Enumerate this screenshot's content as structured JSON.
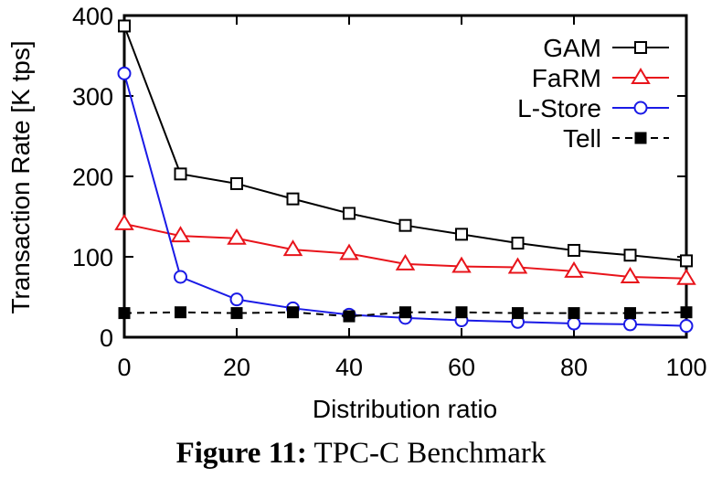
{
  "chart_data": {
    "type": "line",
    "xlabel": "Distribution ratio",
    "ylabel": "Transaction Rate [K tps]",
    "xlim": [
      0,
      100
    ],
    "ylim": [
      0,
      400
    ],
    "xticks": [
      0,
      20,
      40,
      60,
      80,
      100
    ],
    "yticks": [
      0,
      100,
      200,
      300,
      400
    ],
    "grid": false,
    "legend_position": "top-right",
    "series": [
      {
        "name": "GAM",
        "color": "#000000",
        "marker": "open-square",
        "dash": "solid",
        "x": [
          0,
          10,
          20,
          30,
          40,
          50,
          60,
          70,
          80,
          90,
          100
        ],
        "values": [
          387,
          203,
          191,
          172,
          154,
          139,
          128,
          117,
          108,
          102,
          95
        ]
      },
      {
        "name": "FaRM",
        "color": "#e8141b",
        "marker": "open-triangle",
        "dash": "solid",
        "x": [
          0,
          10,
          20,
          30,
          40,
          50,
          60,
          70,
          80,
          90,
          100
        ],
        "values": [
          141,
          126,
          123,
          109,
          104,
          91,
          88,
          87,
          82,
          75,
          73
        ]
      },
      {
        "name": "L-Store",
        "color": "#1a1ae6",
        "marker": "open-circle",
        "dash": "solid",
        "x": [
          0,
          10,
          20,
          30,
          40,
          50,
          60,
          70,
          80,
          90,
          100
        ],
        "values": [
          328,
          75,
          47,
          36,
          28,
          24,
          21,
          19,
          17,
          16,
          14
        ]
      },
      {
        "name": "Tell",
        "color": "#000000",
        "marker": "filled-square",
        "dash": "dashed",
        "x": [
          0,
          10,
          20,
          30,
          40,
          50,
          60,
          70,
          80,
          90,
          100
        ],
        "values": [
          30,
          31,
          30,
          31,
          26,
          31,
          31,
          30,
          30,
          30,
          31
        ]
      }
    ]
  },
  "caption": {
    "label": "Figure 11:",
    "text": "TPC-C Benchmark"
  }
}
